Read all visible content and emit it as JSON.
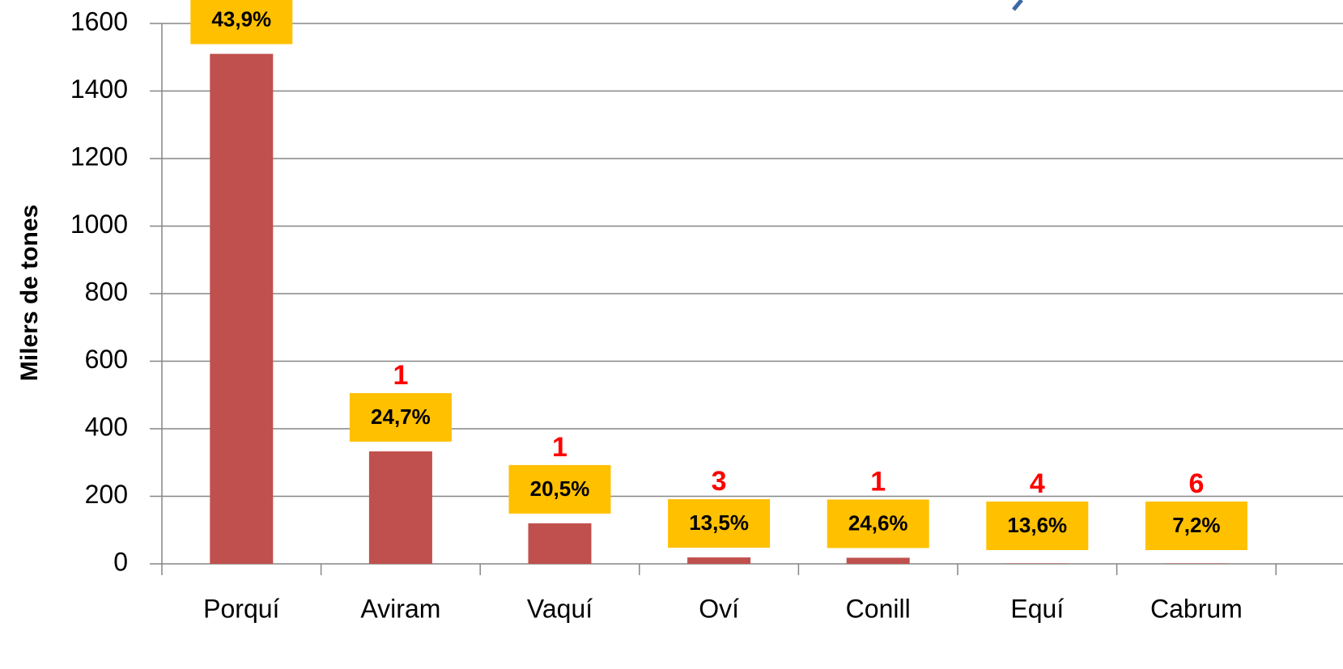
{
  "chart_data": {
    "type": "bar",
    "y_label": "Milers de tones",
    "categories": [
      "Porquí",
      "Aviram",
      "Vaquí",
      "Oví",
      "Conill",
      "Equí",
      "Cabrum"
    ],
    "values": [
      1510,
      333,
      120,
      19,
      18,
      1,
      1
    ],
    "color": "#c0504d",
    "annotations": [
      "43,9%",
      "24,7%",
      "20,5%",
      "13,5%",
      "24,6%",
      "13,6%",
      "7,2%"
    ],
    "ranks": [
      null,
      "1",
      "1",
      "3",
      "1",
      "4",
      "6"
    ],
    "annotation_color": "#ffc000",
    "ylim": [
      0,
      1600
    ],
    "yticks": [
      0,
      200,
      400,
      600,
      800,
      1000,
      1200,
      1400,
      1600
    ],
    "grid": true
  }
}
